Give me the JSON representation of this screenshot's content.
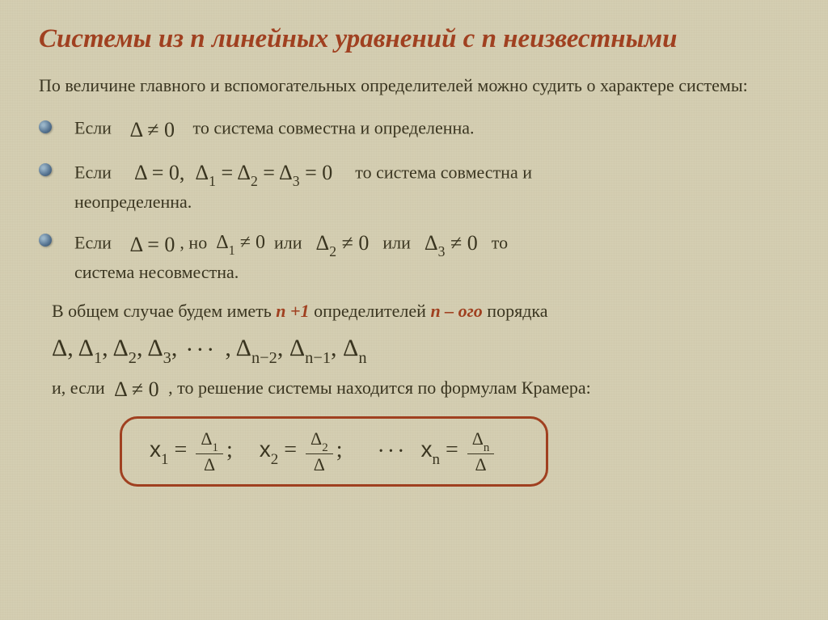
{
  "title": "Системы из n линейных уравнений с n неизвестными",
  "intro": "По величине главного и вспомогательных определителей можно судить о характере системы:",
  "bullets": {
    "b1": {
      "prefix": "Если",
      "math": "Δ ≠ 0",
      "suffix": "то система совместна и определенна."
    },
    "b2": {
      "prefix": "Если",
      "math": "Δ = 0,  Δ₁ = Δ₂ = Δ₃ = 0",
      "suffix": "то система совместна и",
      "cont": "неопределенна."
    },
    "b3": {
      "prefix": "Если",
      "math1": "Δ = 0",
      "mid1": ", но",
      "math2": "Δ₁ ≠ 0",
      "mid2": "или",
      "math3": "Δ₂ ≠ 0",
      "mid3": "или",
      "math4": "Δ₃ ≠ 0",
      "suffix": "то",
      "cont": "система несовместна."
    }
  },
  "summary": {
    "pre": "В общем случае будем иметь ",
    "n1": "n +1",
    "mid": " определителей ",
    "n2": "n – ого",
    "post": " порядка"
  },
  "delta_series": "Δ, Δ₁, Δ₂, Δ₃,···, Δₙ₋₂, Δₙ₋₁, Δₙ",
  "kramer": {
    "pre": "и, если ",
    "math": "Δ ≠ 0",
    "post": " , то решение системы находится по формулам Крамера:"
  },
  "formula": {
    "items": [
      {
        "var": "x",
        "sub": "1",
        "num": "Δ",
        "numsub": "1",
        "den": "Δ",
        "sep": ";"
      },
      {
        "var": "x",
        "sub": "2",
        "num": "Δ",
        "numsub": "2",
        "den": "Δ",
        "sep": ";"
      },
      {
        "var": "x",
        "sub": "n",
        "num": "Δ",
        "numsub": "n",
        "den": "Δ",
        "sep": ""
      }
    ],
    "dots": "···"
  },
  "colors": {
    "title": "#a04020",
    "text": "#3a3520",
    "background": "#d4ceb2",
    "box_border": "#a04020"
  }
}
